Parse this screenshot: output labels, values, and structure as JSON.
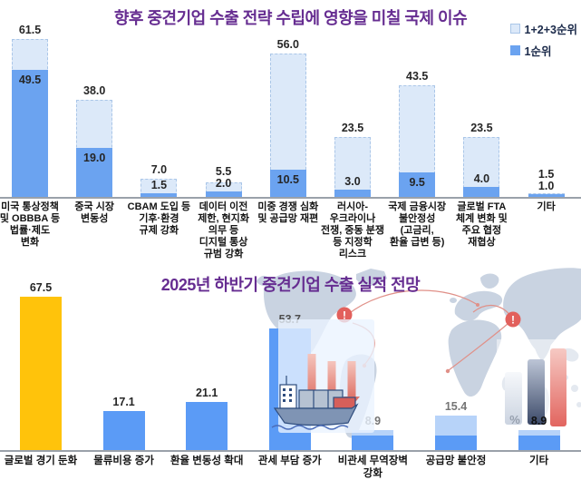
{
  "chart_data": [
    {
      "type": "bar",
      "title": "향후 중견기업 수출 전략 수립에 영향을 미칠 국제 이슈",
      "title_color": "#662d91",
      "legend_position": "top-right",
      "legend": [
        {
          "label": "1+2+3순위",
          "color": "#dce9f9"
        },
        {
          "label": "1순위",
          "color": "#6ba3f0"
        }
      ],
      "categories": [
        [
          "미국 통상정책",
          "및 OBBBA 등",
          "법률·제도",
          "변화"
        ],
        [
          "중국 시장",
          "변동성"
        ],
        [
          "CBAM 도입 등",
          "기후·환경",
          "규제 강화"
        ],
        [
          "데이터 이전",
          "제한, 현지화",
          "의무 등",
          "디지털 통상",
          "규범 강화"
        ],
        [
          "미중 경쟁 심화",
          "및 공급망 재편"
        ],
        [
          "러시아-",
          "우크라이나",
          "전쟁, 중동 분쟁",
          "등 지정학",
          "리스크"
        ],
        [
          "국제 금융시장",
          "불안정성",
          "(고금리,",
          "환율 급변 등)"
        ],
        [
          "글로벌 FTA",
          "체계 변화 및",
          "주요 협정",
          "재협상"
        ],
        [
          "기타"
        ]
      ],
      "series": [
        {
          "name": "1+2+3순위",
          "color": "#dce9f9",
          "values": [
            61.5,
            38.0,
            7.0,
            5.5,
            56.0,
            23.5,
            43.5,
            23.5,
            1.5
          ]
        },
        {
          "name": "1순위",
          "color": "#6ba3f0",
          "values": [
            49.5,
            19.0,
            1.5,
            2.0,
            10.5,
            3.0,
            9.5,
            4.0,
            1.0
          ]
        }
      ],
      "grid": false,
      "y_axis_shown": false
    },
    {
      "type": "bar",
      "title": "2025년 하반기 중견기업 수출 실적 전망",
      "title_color": "#662d91",
      "categories": [
        [
          "글로벌 경기 둔화"
        ],
        [
          "물류비용 증가"
        ],
        [
          "환율 변동성 확대"
        ],
        [
          "관세 부담 증가"
        ],
        [
          "비관세 무역장벽",
          "강화"
        ],
        [
          "공급망 불안정"
        ],
        [
          "기타"
        ]
      ],
      "values": [
        67.5,
        17.1,
        21.1,
        53.7,
        8.9,
        15.4,
        8.9
      ],
      "bar_colors": [
        "#ffc30b",
        "#5b9bf6",
        "#5b9bf6",
        "#5b9bf6",
        "#5b9bf6",
        "#5b9bf6",
        "#5b9bf6"
      ],
      "two_tone_light_color": "#b7d3f9",
      "grid": false,
      "y_axis_shown": false,
      "decorations": {
        "exclamation_mark": "!",
        "percent_symbol": "%",
        "icons": [
          "world-map",
          "cargo-ship",
          "red-down-arrows",
          "mini-bar-chart",
          "route-arcs"
        ]
      }
    }
  ]
}
